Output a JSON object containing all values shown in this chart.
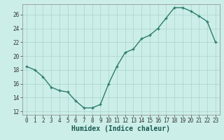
{
  "xlabel": "Humidex (Indice chaleur)",
  "x_values": [
    0,
    1,
    2,
    3,
    4,
    5,
    6,
    7,
    8,
    9,
    10,
    11,
    12,
    13,
    14,
    15,
    16,
    17,
    18,
    19,
    20,
    21,
    22,
    23
  ],
  "y_values": [
    18.5,
    18.0,
    17.0,
    15.5,
    15.0,
    14.8,
    13.5,
    12.5,
    12.5,
    13.0,
    16.0,
    18.5,
    20.5,
    21.0,
    22.5,
    23.0,
    24.0,
    25.5,
    27.0,
    27.0,
    26.5,
    25.8,
    25.0,
    22.0
  ],
  "line_color": "#2d7d6f",
  "marker": "+",
  "marker_size": 3,
  "linewidth": 1.0,
  "bg_color": "#cceee8",
  "grid_color": "#aad4ce",
  "ylim": [
    11.5,
    27.5
  ],
  "yticks": [
    12,
    14,
    16,
    18,
    20,
    22,
    24,
    26
  ],
  "xlim": [
    -0.5,
    23.5
  ],
  "xticks": [
    0,
    1,
    2,
    3,
    4,
    5,
    6,
    7,
    8,
    9,
    10,
    11,
    12,
    13,
    14,
    15,
    16,
    17,
    18,
    19,
    20,
    21,
    22,
    23
  ],
  "tick_fontsize": 5.5,
  "xlabel_fontsize": 7.0,
  "markeredgewidth": 1.0
}
